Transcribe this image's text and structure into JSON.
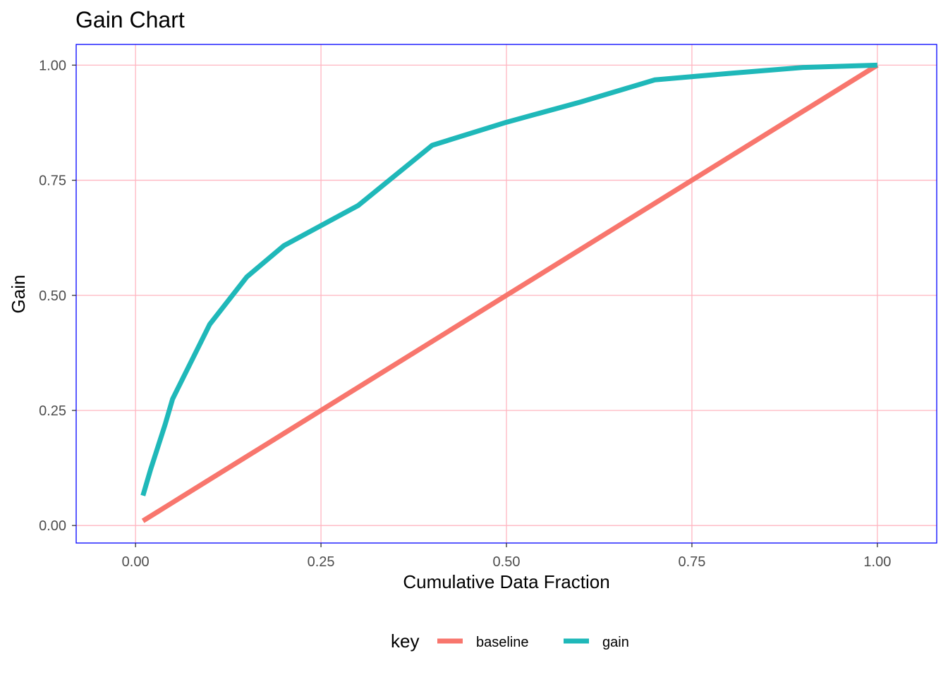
{
  "chart_data": {
    "type": "line",
    "title": "Gain Chart",
    "xlabel": "Cumulative Data Fraction",
    "ylabel": "Gain",
    "xlim": [
      -0.08,
      1.08
    ],
    "ylim": [
      -0.038,
      1.045
    ],
    "x_ticks": [
      0,
      0.25,
      0.5,
      0.75,
      1.0
    ],
    "x_tick_labels": [
      "0.00",
      "0.25",
      "0.50",
      "0.75",
      "1.00"
    ],
    "y_ticks": [
      0,
      0.25,
      0.5,
      0.75,
      1.0
    ],
    "y_tick_labels": [
      "0.00",
      "0.25",
      "0.50",
      "0.75",
      "1.00"
    ],
    "grid": true,
    "grid_color": "#ffb6c1",
    "panel_border_color": "#0000ff",
    "legend": {
      "title": "key",
      "position": "bottom"
    },
    "series": [
      {
        "name": "baseline",
        "color": "#f8766d",
        "x": [
          0.01,
          0.02,
          0.03,
          0.04,
          0.05,
          0.1,
          0.15,
          0.2,
          0.3,
          0.4,
          0.5,
          0.6,
          0.7,
          0.8,
          0.9,
          1.0
        ],
        "y": [
          0.01,
          0.02,
          0.03,
          0.04,
          0.05,
          0.1,
          0.15,
          0.2,
          0.3,
          0.4,
          0.5,
          0.6,
          0.7,
          0.8,
          0.9,
          1.0
        ]
      },
      {
        "name": "gain",
        "color": "#1fb8b9",
        "x": [
          0.01,
          0.02,
          0.03,
          0.04,
          0.05,
          0.1,
          0.15,
          0.2,
          0.3,
          0.4,
          0.5,
          0.6,
          0.7,
          0.8,
          0.9,
          1.0
        ],
        "y": [
          0.065,
          0.12,
          0.17,
          0.22,
          0.275,
          0.437,
          0.54,
          0.608,
          0.695,
          0.826,
          0.876,
          0.92,
          0.968,
          0.982,
          0.995,
          1.0
        ]
      }
    ]
  }
}
